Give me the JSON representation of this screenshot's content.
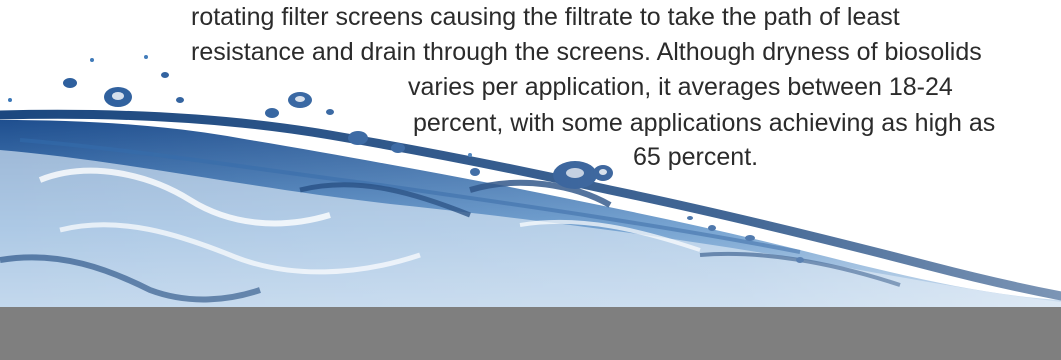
{
  "body_text": {
    "line_1": "rotating filter screens causing the filtrate to take the path of least",
    "line_2": "resistance and drain through the screens.  Although dryness of biosolids",
    "line_3": "varies per application, it averages between 18-24",
    "line_4": "percent, with some applications achieving as high as",
    "line_5": "65 percent."
  },
  "colors": {
    "text": "#2b2b2b",
    "water_dark": "#1f4f8f",
    "water_mid": "#3c78b8",
    "water_light": "#a9c8e6",
    "footer_bar": "#7f7f7f"
  }
}
